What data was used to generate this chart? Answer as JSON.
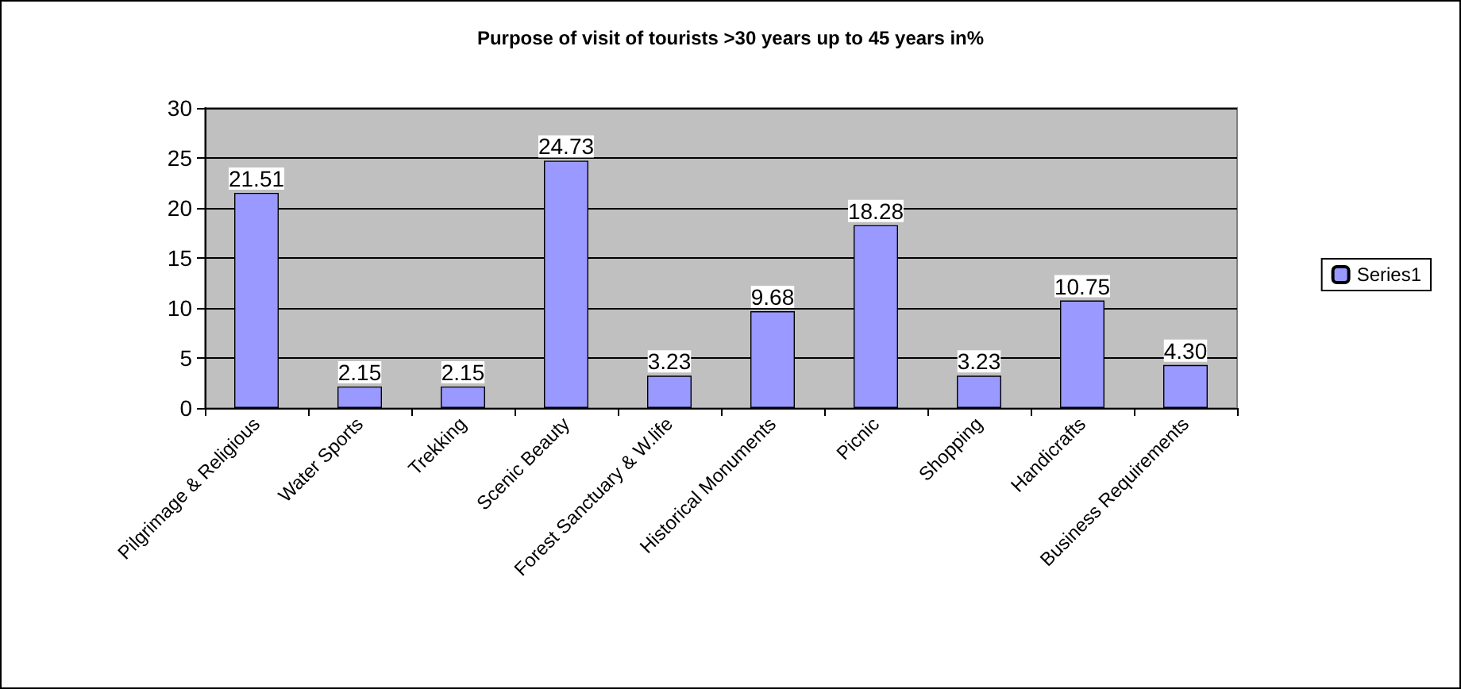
{
  "chart_data": {
    "type": "bar",
    "title": "Purpose of visit of tourists >30 years up to 45 years in%",
    "categories": [
      "Pilgrimage & Religious",
      "Water Sports",
      "Trekking",
      "Scenic Beauty",
      "Forest Sanctuary & W.life",
      "Historical Monuments",
      "Picnic",
      "Shopping",
      "Handicrafts",
      "Business Requirements"
    ],
    "series": [
      {
        "name": "Series1",
        "color": "#9999ff",
        "values": [
          21.51,
          2.15,
          2.15,
          24.73,
          3.23,
          9.68,
          18.28,
          3.23,
          10.75,
          4.3
        ],
        "value_labels": [
          "21.51",
          "2.15",
          "2.15",
          "24.73",
          "3.23",
          "9.68",
          "18.28",
          "3.23",
          "10.75",
          "4.30"
        ]
      }
    ],
    "ylim": [
      0,
      30
    ],
    "yticks": [
      0,
      5,
      10,
      15,
      20,
      25,
      30
    ],
    "grid": "y",
    "legend": "right"
  }
}
